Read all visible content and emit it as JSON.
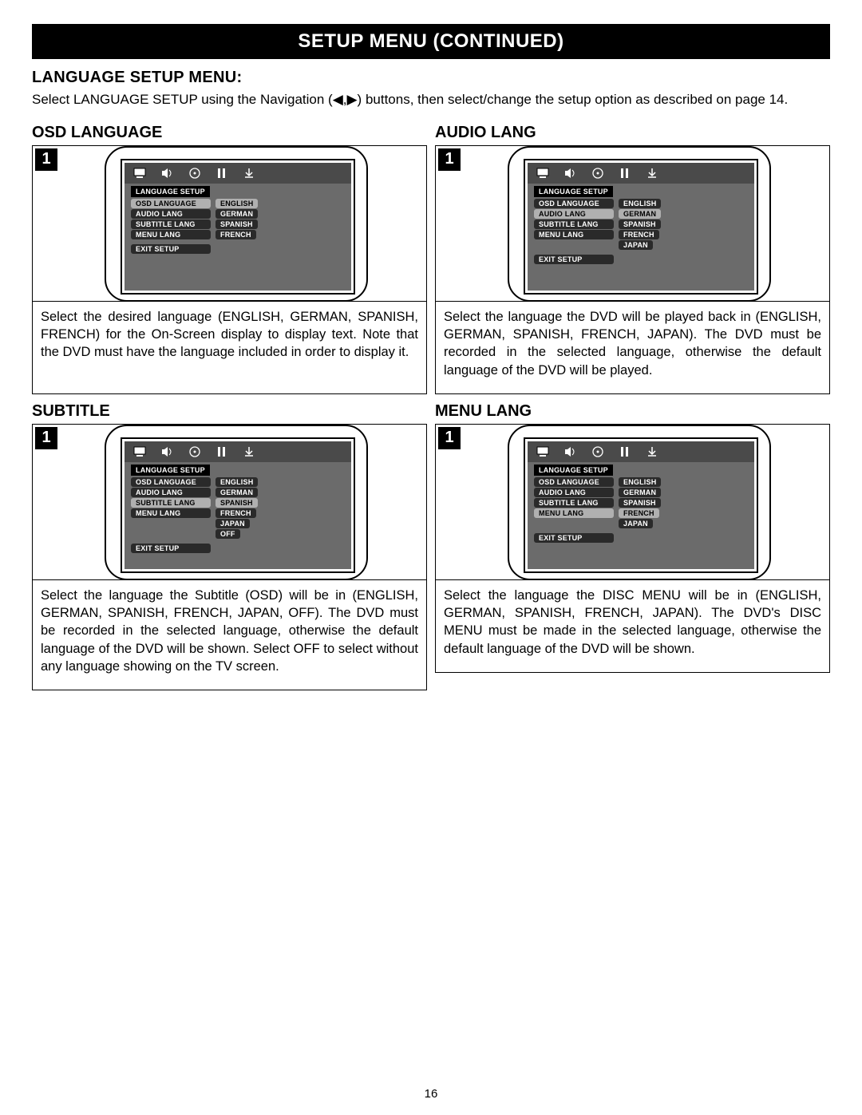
{
  "header": "SETUP MENU (CONTINUED)",
  "section_title": "LANGUAGE SETUP MENU:",
  "intro": "Select LANGUAGE SETUP using the Navigation (◀,▶) buttons, then select/change the setup option as described on page 14.",
  "page_number": "16",
  "step_label": "1",
  "menu_caption": "LANGUAGE SETUP",
  "exit_label": "EXIT SETUP",
  "colors": {
    "header_bg": "#000000",
    "header_fg": "#ffffff",
    "screen_bg": "#6b6b6b",
    "iconbar_bg": "#4a4a4a",
    "pill_dark_bg": "#2a2a2a",
    "pill_dark_fg": "#ffffff",
    "pill_light_bg": "#b0b0b0",
    "pill_light_fg": "#000000"
  },
  "cells": [
    {
      "title": "OSD LANGUAGE",
      "menu": {
        "rows": [
          {
            "label": "OSD LANGUAGE",
            "label_hl": true,
            "value": "ENGLISH",
            "value_hl": true
          },
          {
            "label": "AUDIO LANG",
            "label_hl": false,
            "value": "GERMAN",
            "value_hl": false
          },
          {
            "label": "SUBTITLE LANG",
            "label_hl": false,
            "value": "SPANISH",
            "value_hl": false
          },
          {
            "label": "MENU LANG",
            "label_hl": false,
            "value": "FRENCH",
            "value_hl": false
          }
        ],
        "extra": []
      },
      "body": "Select the desired language (ENGLISH, GERMAN, SPANISH, FRENCH) for the On-Screen display to display text. Note that the DVD must have the language included in order to display it."
    },
    {
      "title": "AUDIO LANG",
      "menu": {
        "rows": [
          {
            "label": "OSD LANGUAGE",
            "label_hl": false,
            "value": "ENGLISH",
            "value_hl": false
          },
          {
            "label": "AUDIO LANG",
            "label_hl": true,
            "value": "GERMAN",
            "value_hl": true
          },
          {
            "label": "SUBTITLE LANG",
            "label_hl": false,
            "value": "SPANISH",
            "value_hl": false
          },
          {
            "label": "MENU LANG",
            "label_hl": false,
            "value": "FRENCH",
            "value_hl": false
          }
        ],
        "extra": [
          {
            "value": "JAPAN",
            "value_hl": false
          }
        ]
      },
      "body": "Select the language the DVD will be played back in (ENGLISH, GERMAN, SPANISH, FRENCH, JAPAN). The DVD must be recorded in the selected language, otherwise the default language of the DVD will be played."
    },
    {
      "title": "SUBTITLE",
      "menu": {
        "rows": [
          {
            "label": "OSD LANGUAGE",
            "label_hl": false,
            "value": "ENGLISH",
            "value_hl": false
          },
          {
            "label": "AUDIO LANG",
            "label_hl": false,
            "value": "GERMAN",
            "value_hl": false
          },
          {
            "label": "SUBTITLE LANG",
            "label_hl": true,
            "value": "SPANISH",
            "value_hl": true
          },
          {
            "label": "MENU LANG",
            "label_hl": false,
            "value": "FRENCH",
            "value_hl": false
          }
        ],
        "extra": [
          {
            "value": "JAPAN",
            "value_hl": false
          },
          {
            "value": "OFF",
            "value_hl": false
          }
        ]
      },
      "body": "Select the language the Subtitle (OSD) will be in (ENGLISH, GERMAN, SPANISH, FRENCH, JAPAN, OFF). The DVD must be recorded in the selected language, otherwise the default language of the DVD will be shown. Select OFF to select without any language showing on the TV screen."
    },
    {
      "title": "MENU LANG",
      "menu": {
        "rows": [
          {
            "label": "OSD LANGUAGE",
            "label_hl": false,
            "value": "ENGLISH",
            "value_hl": false
          },
          {
            "label": "AUDIO LANG",
            "label_hl": false,
            "value": "GERMAN",
            "value_hl": false
          },
          {
            "label": "SUBTITLE LANG",
            "label_hl": false,
            "value": "SPANISH",
            "value_hl": false
          },
          {
            "label": "MENU LANG",
            "label_hl": true,
            "value": "FRENCH",
            "value_hl": true
          }
        ],
        "extra": [
          {
            "value": "JAPAN",
            "value_hl": false
          }
        ]
      },
      "body": "Select the language the DISC MENU will be in (ENGLISH, GERMAN, SPANISH, FRENCH, JAPAN). The DVD's DISC MENU must be made in the selected language, otherwise the default language of the DVD will be shown."
    }
  ]
}
